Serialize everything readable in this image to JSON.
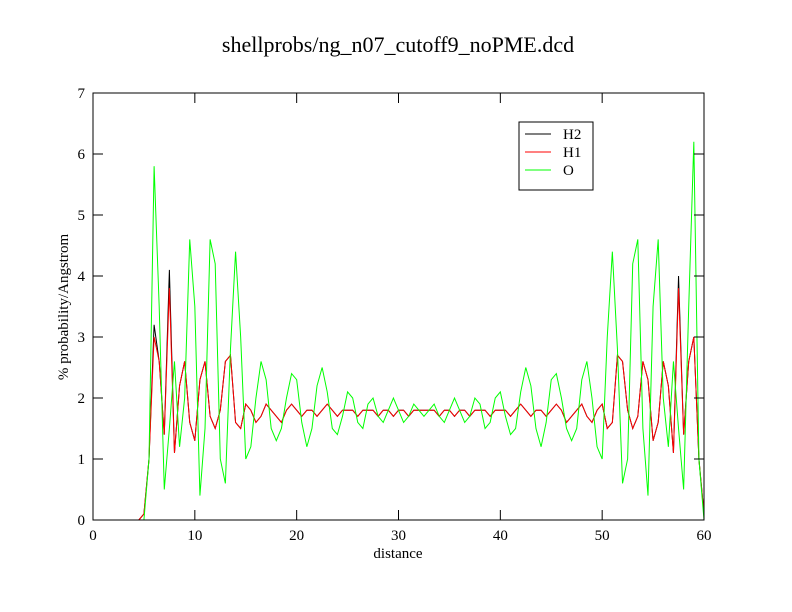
{
  "chart_data": {
    "type": "line",
    "title": "shellprobs/ng_n07_cutoff9_noPME.dcd",
    "x_label": "distance",
    "y_label": "% probability/Angstrom",
    "x": [
      4.5,
      5,
      5.5,
      6,
      6.5,
      7,
      7.5,
      8,
      8.5,
      9,
      9.5,
      10,
      10.5,
      11,
      11.5,
      12,
      12.5,
      13,
      13.5,
      14,
      14.5,
      15,
      15.5,
      16,
      16.5,
      17,
      17.5,
      18,
      18.5,
      19,
      19.5,
      20,
      20.5,
      21,
      21.5,
      22,
      22.5,
      23,
      23.5,
      24,
      24.5,
      25,
      25.5,
      26,
      26.5,
      27,
      27.5,
      28,
      28.5,
      29,
      29.5,
      30,
      30.5,
      31,
      31.5,
      32,
      32.5,
      33,
      33.5,
      34,
      34.5,
      35,
      35.5,
      36,
      36.5,
      37,
      37.5,
      38,
      38.5,
      39,
      39.5,
      40,
      40.5,
      41,
      41.5,
      42,
      42.5,
      43,
      43.5,
      44,
      44.5,
      45,
      45.5,
      46,
      46.5,
      47,
      47.5,
      48,
      48.5,
      49,
      49.5,
      50,
      50.5,
      51,
      51.5,
      52,
      52.5,
      53,
      53.5,
      54,
      54.5,
      55,
      55.5,
      56,
      56.5,
      57,
      57.5,
      58,
      58.5,
      59,
      59.5,
      60
    ],
    "series": [
      {
        "name": "H2",
        "color": "#000000",
        "values": [
          0,
          0.1,
          1.0,
          3.2,
          2.6,
          1.4,
          4.1,
          1.1,
          2.2,
          2.6,
          1.6,
          1.3,
          2.3,
          2.6,
          1.7,
          1.5,
          1.8,
          2.6,
          2.7,
          1.6,
          1.5,
          1.9,
          1.8,
          1.6,
          1.7,
          1.9,
          1.8,
          1.7,
          1.6,
          1.8,
          1.9,
          1.8,
          1.7,
          1.8,
          1.8,
          1.7,
          1.8,
          1.9,
          1.8,
          1.7,
          1.8,
          1.8,
          1.8,
          1.7,
          1.8,
          1.8,
          1.8,
          1.7,
          1.8,
          1.8,
          1.7,
          1.8,
          1.8,
          1.7,
          1.8,
          1.8,
          1.8,
          1.8,
          1.8,
          1.7,
          1.8,
          1.8,
          1.7,
          1.8,
          1.8,
          1.7,
          1.8,
          1.8,
          1.8,
          1.7,
          1.8,
          1.8,
          1.8,
          1.7,
          1.8,
          1.9,
          1.8,
          1.7,
          1.8,
          1.8,
          1.7,
          1.8,
          1.9,
          1.8,
          1.6,
          1.7,
          1.8,
          1.9,
          1.7,
          1.6,
          1.8,
          1.9,
          1.5,
          1.6,
          2.7,
          2.6,
          1.8,
          1.5,
          1.7,
          2.6,
          2.3,
          1.3,
          1.6,
          2.6,
          2.2,
          1.1,
          4.0,
          1.4,
          2.6,
          3.0,
          1.0,
          0.1
        ]
      },
      {
        "name": "H1",
        "color": "#ff0000",
        "values": [
          0,
          0.1,
          1.0,
          3.0,
          2.6,
          1.4,
          3.8,
          1.1,
          2.2,
          2.6,
          1.6,
          1.3,
          2.3,
          2.6,
          1.7,
          1.5,
          1.8,
          2.6,
          2.7,
          1.6,
          1.5,
          1.9,
          1.8,
          1.6,
          1.7,
          1.9,
          1.8,
          1.7,
          1.6,
          1.8,
          1.9,
          1.8,
          1.7,
          1.8,
          1.8,
          1.7,
          1.8,
          1.9,
          1.8,
          1.7,
          1.8,
          1.8,
          1.8,
          1.7,
          1.8,
          1.8,
          1.8,
          1.7,
          1.8,
          1.8,
          1.7,
          1.8,
          1.8,
          1.7,
          1.8,
          1.8,
          1.8,
          1.8,
          1.8,
          1.7,
          1.8,
          1.8,
          1.7,
          1.8,
          1.8,
          1.7,
          1.8,
          1.8,
          1.8,
          1.7,
          1.8,
          1.8,
          1.8,
          1.7,
          1.8,
          1.9,
          1.8,
          1.7,
          1.8,
          1.8,
          1.7,
          1.8,
          1.9,
          1.8,
          1.6,
          1.7,
          1.8,
          1.9,
          1.7,
          1.6,
          1.8,
          1.9,
          1.5,
          1.6,
          2.7,
          2.6,
          1.8,
          1.5,
          1.7,
          2.6,
          2.3,
          1.3,
          1.6,
          2.6,
          2.2,
          1.1,
          3.8,
          1.4,
          2.6,
          3.0,
          1.0,
          0.1
        ]
      },
      {
        "name": "O",
        "color": "#00ff00",
        "values": [
          0,
          0,
          1.0,
          5.8,
          3.5,
          0.5,
          1.5,
          2.6,
          1.2,
          2.0,
          4.6,
          3.5,
          0.4,
          1.5,
          4.6,
          4.2,
          1.0,
          0.6,
          2.8,
          4.4,
          3.0,
          1.0,
          1.2,
          2.0,
          2.6,
          2.3,
          1.5,
          1.3,
          1.5,
          2.0,
          2.4,
          2.3,
          1.6,
          1.2,
          1.5,
          2.2,
          2.5,
          2.1,
          1.5,
          1.4,
          1.7,
          2.1,
          2.0,
          1.6,
          1.5,
          1.9,
          2.0,
          1.7,
          1.6,
          1.8,
          2.0,
          1.8,
          1.6,
          1.7,
          1.9,
          1.8,
          1.7,
          1.8,
          1.9,
          1.7,
          1.6,
          1.8,
          2.0,
          1.8,
          1.6,
          1.7,
          2.0,
          1.9,
          1.5,
          1.6,
          2.0,
          2.1,
          1.7,
          1.4,
          1.5,
          2.1,
          2.5,
          2.2,
          1.5,
          1.2,
          1.6,
          2.3,
          2.4,
          2.0,
          1.5,
          1.3,
          1.5,
          2.3,
          2.6,
          2.0,
          1.2,
          1.0,
          3.0,
          4.4,
          2.8,
          0.6,
          1.0,
          4.2,
          4.6,
          1.5,
          0.4,
          3.5,
          4.6,
          2.0,
          1.2,
          2.6,
          1.5,
          0.5,
          3.5,
          6.2,
          1.0,
          0
        ]
      }
    ],
    "xlim": [
      0,
      60
    ],
    "xticks": [
      0,
      10,
      20,
      30,
      40,
      50,
      60
    ],
    "ylim": [
      0,
      7
    ],
    "yticks": [
      0,
      1,
      2,
      3,
      4,
      5,
      6,
      7
    ],
    "legend": "upper right"
  }
}
